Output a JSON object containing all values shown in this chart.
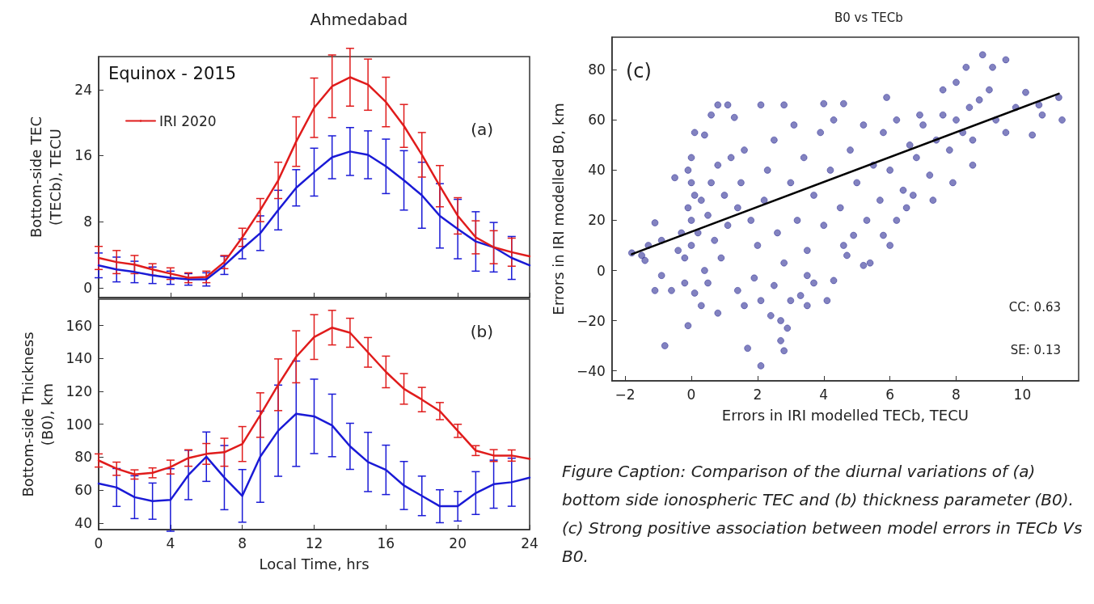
{
  "chart_data": [
    {
      "type": "line",
      "title": "Ahmedabad",
      "ylabel": "Bottom-side TEC\n(TECb), TECU",
      "legend_title": "Equinox - 2015",
      "legend": "top left",
      "marker": "none",
      "tick_labels": "y",
      "annotations": [
        "(a)"
      ],
      "x": [
        0,
        1,
        2,
        3,
        4,
        5,
        6,
        7,
        8,
        9,
        10,
        11,
        12,
        13,
        14,
        15,
        16,
        17,
        18,
        19,
        20,
        21,
        22,
        23,
        24
      ],
      "xlim": [
        0,
        24
      ],
      "xticks": [
        0,
        4,
        8,
        12,
        16,
        20,
        24
      ],
      "ylim": [
        -1.2,
        28
      ],
      "yticks": [
        0,
        8,
        16,
        24
      ],
      "series": [
        {
          "color": "#1a1ad6",
          "values": [
            2.7,
            2.2,
            1.9,
            1.5,
            1.2,
            1.0,
            1.0,
            2.7,
            4.7,
            6.6,
            9.4,
            12.1,
            14,
            15.8,
            16.5,
            16.1,
            14.7,
            13,
            11.2,
            8.7,
            7.1,
            5.6,
            4.9,
            3.6,
            2.7
          ],
          "errors": [
            1.5,
            1.5,
            1.3,
            1,
            0.8,
            0.7,
            0.8,
            1.1,
            1.2,
            2.1,
            2.4,
            2.2,
            2.9,
            2.6,
            2.9,
            2.9,
            3.3,
            3.6,
            4,
            3.9,
            3.6,
            3.6,
            3,
            2.6,
            null
          ]
        },
        {
          "name": "IRI 2020",
          "color": "#e01c1c",
          "values": [
            3.6,
            3.1,
            2.8,
            2.2,
            1.7,
            1.2,
            1.3,
            3.1,
            6.1,
            9.4,
            13,
            17.7,
            21.8,
            24.4,
            25.5,
            24.6,
            22.5,
            19.6,
            16.1,
            12.3,
            8.7,
            6.1,
            4.9,
            4.3,
            3.8
          ],
          "errors": [
            1.4,
            1.4,
            1.1,
            0.7,
            0.7,
            0.6,
            0.7,
            0.8,
            1.1,
            1.4,
            2.2,
            3,
            3.6,
            3.8,
            3.5,
            3.1,
            3,
            2.6,
            2.7,
            2.5,
            2.2,
            2,
            2,
            1.7,
            null
          ]
        }
      ]
    },
    {
      "type": "line",
      "xlabel": "Local Time, hrs",
      "ylabel": "Bottom-side Thickness\n(B0), km",
      "marker": "none",
      "annotations": [
        "(b)"
      ],
      "x": [
        0,
        1,
        2,
        3,
        4,
        5,
        6,
        7,
        8,
        9,
        10,
        11,
        12,
        13,
        14,
        15,
        16,
        17,
        18,
        19,
        20,
        21,
        22,
        23,
        24
      ],
      "xlim": [
        0,
        24
      ],
      "xticks": [
        0,
        4,
        8,
        12,
        16,
        20,
        24
      ],
      "ylim": [
        36,
        176
      ],
      "yticks": [
        40,
        60,
        80,
        100,
        120,
        140,
        160
      ],
      "series": [
        {
          "color": "#1a1ad6",
          "values": [
            64,
            61.6,
            55.7,
            53.3,
            54,
            69.2,
            80.3,
            67.6,
            56.5,
            80.3,
            96.1,
            106.4,
            104.8,
            99.3,
            86.6,
            77.1,
            72.3,
            62.8,
            56.5,
            50.2,
            50.2,
            58.2,
            63.6,
            64.8,
            67.6
          ],
          "errors": [
            null,
            11.5,
            13,
            11,
            19,
            15,
            15,
            19.5,
            16,
            27.7,
            27.7,
            32,
            22.6,
            19,
            14,
            18,
            15,
            14.6,
            12,
            10,
            9,
            13,
            14.6,
            14.6,
            null
          ]
        },
        {
          "color": "#e01c1c",
          "values": [
            78,
            73,
            69.5,
            70.5,
            74,
            79.5,
            82,
            83,
            88,
            105.6,
            124,
            141,
            153,
            158.7,
            155.6,
            143.7,
            131.8,
            121.5,
            115,
            108,
            96,
            84,
            81,
            81,
            79
          ],
          "errors": [
            4,
            4,
            2.8,
            3,
            4.2,
            5,
            6.3,
            8.5,
            10.6,
            13.5,
            15.7,
            15.8,
            13.6,
            10.5,
            8.8,
            9,
            9.6,
            9.3,
            7.4,
            5.2,
            4,
            3,
            3.6,
            3.4,
            null
          ]
        }
      ]
    },
    {
      "type": "scatter",
      "title": "B0 vs TECb",
      "xlabel": "Errors in IRI modelled TECb, TECU",
      "ylabel": "Errors in IRI modelled B0, km",
      "marker": "circle",
      "annotations": [
        "(c)",
        "CC: 0.63",
        "SE: 0.13",
        "Figure Caption: Comparison of the diurnal variations of (a) bottom side ionospheric TEC and (b) thickness parameter (B0). (c) Strong positive association between model errors in TECb Vs B0."
      ],
      "xlim": [
        -2.4,
        11.7
      ],
      "xticks": [
        {
          "value": -2,
          "label": "−2"
        },
        0,
        2,
        4,
        6,
        8,
        10
      ],
      "ylim": [
        -44,
        93
      ],
      "yticks": [
        {
          "value": -40,
          "label": "−40"
        },
        {
          "value": -20,
          "label": "−20"
        },
        0,
        20,
        40,
        60,
        80
      ],
      "series": [
        {
          "color": "#1c1c8c",
          "x": [
            -0.8,
            -0.1,
            2.1,
            1.7,
            2.7,
            2.8,
            -1.1,
            -1.3,
            -1.4,
            -1.1,
            -0.9,
            -0.5,
            0.1,
            0.4,
            0.6,
            0.8,
            1.1,
            1.3,
            2.1,
            2.8,
            4,
            4.6,
            5.9,
            6.9,
            7.6,
            8,
            8.3,
            8.8,
            9.1,
            9.5,
            9.0,
            10.1,
            10.6,
            11.1,
            11.2,
            10.3,
            9.5,
            8.5,
            8.5,
            7.9,
            7.3,
            6.7,
            6.2,
            5.2,
            5.4,
            4.7,
            4.1,
            3.5,
            3.3,
            3.7,
            2.4,
            2.1,
            1.6,
            2.7,
            2.9,
            3.5,
            4.3,
            0.8,
            0.3,
            0.1,
            -0.2,
            0.5,
            1.4,
            -0.2,
            0,
            0.2,
            0,
            -0.1,
            0.1,
            0,
            -0.1,
            0,
            0.3,
            0.5,
            0.7,
            0.9,
            0.4,
            -0.3,
            -0.4,
            0.6,
            0.8,
            1,
            1.2,
            1.1,
            1.4,
            1.5,
            1.6,
            1.8,
            2,
            2.2,
            2.3,
            2.5,
            2.6,
            2.8,
            3,
            3.1,
            3.2,
            3.4,
            3.5,
            3.7,
            3.9,
            4,
            4.2,
            4.3,
            4.5,
            4.6,
            4.8,
            5,
            5.2,
            5.3,
            5.5,
            5.7,
            5.8,
            6,
            6.2,
            6.4,
            6.6,
            6.8,
            7,
            7.2,
            7.4,
            7.6,
            7.8,
            8,
            8.2,
            8.4,
            8.7,
            9.2,
            9.8,
            10.5,
            6,
            5.8,
            6.5,
            4.9,
            1.9,
            2.5,
            3,
            -0.6,
            -1.8,
            -1.5,
            -0.9
          ],
          "values": [
            -30,
            -22,
            -38,
            -31,
            -28,
            -32,
            19,
            10,
            4,
            -8,
            -2,
            37,
            55,
            54,
            62,
            66,
            66,
            61,
            66,
            66,
            66.5,
            66.5,
            69,
            62,
            72,
            75,
            81,
            86,
            81,
            84,
            72,
            71,
            62,
            69,
            60,
            54,
            55,
            52,
            42,
            35,
            28,
            30,
            20,
            2,
            3,
            6,
            -12,
            -14,
            -10,
            -5,
            -18,
            -12,
            -14,
            -20,
            -23,
            -2,
            -4,
            -17,
            -14,
            -9,
            -5,
            -5,
            -8,
            5,
            10,
            15,
            20,
            25,
            30,
            35,
            40,
            45,
            28,
            22,
            12,
            5,
            0,
            15,
            8,
            35,
            42,
            30,
            45,
            18,
            25,
            35,
            48,
            20,
            10,
            28,
            40,
            52,
            15,
            3,
            35,
            58,
            20,
            45,
            8,
            30,
            55,
            18,
            40,
            60,
            25,
            10,
            48,
            35,
            58,
            20,
            42,
            28,
            55,
            40,
            60,
            32,
            50,
            45,
            58,
            38,
            52,
            62,
            48,
            60,
            55,
            65,
            68,
            60,
            65,
            66,
            10,
            14,
            25,
            14,
            -3,
            -6,
            -12,
            -8,
            7,
            6,
            12
          ]
        },
        {
          "type": "line",
          "marker": "none",
          "color": "#000000",
          "x": [
            -1.8,
            11.1
          ],
          "values": [
            6.5,
            70.5
          ]
        }
      ]
    }
  ]
}
